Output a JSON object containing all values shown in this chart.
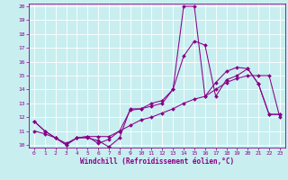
{
  "xlabel": "Windchill (Refroidissement éolien,°C)",
  "background_color": "#c8eef0",
  "grid_color": "#ffffff",
  "line_color": "#880088",
  "xlim": [
    -0.5,
    23.5
  ],
  "ylim": [
    9.8,
    20.2
  ],
  "xticks": [
    0,
    1,
    2,
    3,
    4,
    5,
    6,
    7,
    8,
    9,
    10,
    11,
    12,
    13,
    14,
    15,
    16,
    17,
    18,
    19,
    20,
    21,
    22,
    23
  ],
  "yticks": [
    10,
    11,
    12,
    13,
    14,
    15,
    16,
    17,
    18,
    19,
    20
  ],
  "line1_x": [
    0,
    1,
    2,
    3,
    4,
    5,
    6,
    7,
    8,
    9,
    10,
    11,
    12,
    13,
    14,
    15,
    16,
    17,
    18,
    19,
    20,
    21,
    22,
    23
  ],
  "line1_y": [
    11.7,
    11.0,
    10.5,
    10.0,
    10.5,
    10.5,
    10.3,
    9.85,
    10.5,
    12.6,
    12.6,
    13.0,
    13.2,
    14.0,
    20.0,
    20.0,
    13.5,
    14.5,
    15.3,
    15.6,
    15.5,
    14.4,
    12.2,
    12.2
  ],
  "line2_x": [
    0,
    1,
    2,
    3,
    4,
    5,
    6,
    7,
    8,
    9,
    10,
    11,
    12,
    13,
    14,
    15,
    16,
    17,
    18,
    19,
    20,
    21,
    22,
    23
  ],
  "line2_y": [
    11.7,
    11.0,
    10.5,
    10.0,
    10.5,
    10.6,
    10.1,
    10.4,
    11.0,
    12.5,
    12.6,
    12.8,
    13.0,
    14.0,
    16.4,
    17.5,
    17.2,
    13.5,
    14.7,
    15.0,
    15.5,
    14.4,
    12.2,
    12.2
  ],
  "line3_x": [
    0,
    1,
    2,
    3,
    4,
    5,
    6,
    7,
    8,
    9,
    10,
    11,
    12,
    13,
    14,
    15,
    16,
    17,
    18,
    19,
    20,
    21,
    22,
    23
  ],
  "line3_y": [
    11.0,
    10.8,
    10.5,
    10.1,
    10.5,
    10.6,
    10.6,
    10.6,
    11.0,
    11.4,
    11.8,
    12.0,
    12.3,
    12.6,
    13.0,
    13.3,
    13.5,
    14.0,
    14.5,
    14.8,
    15.0,
    15.0,
    15.0,
    12.0
  ]
}
